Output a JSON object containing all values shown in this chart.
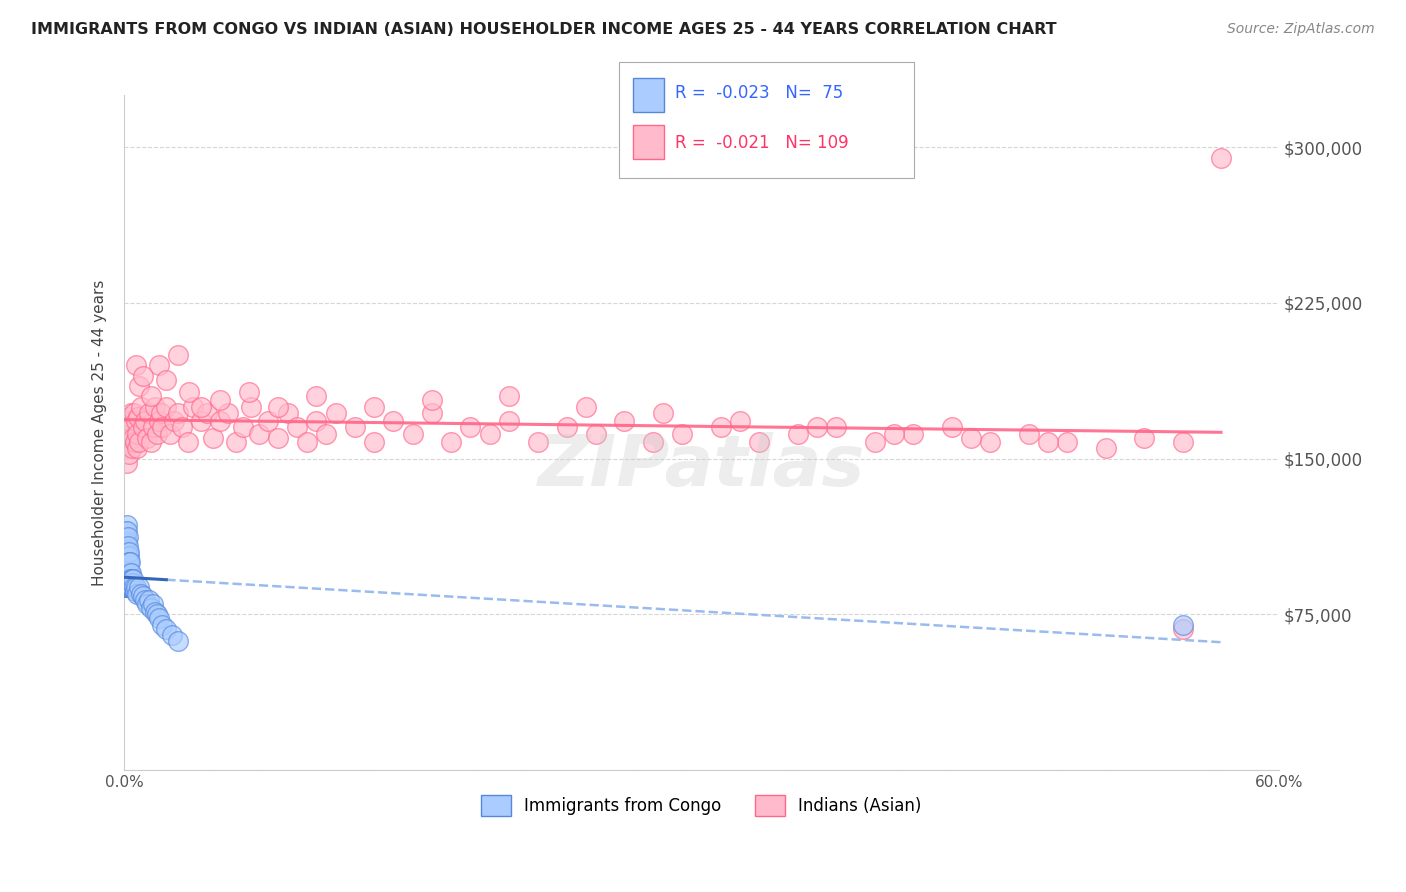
{
  "title": "IMMIGRANTS FROM CONGO VS INDIAN (ASIAN) HOUSEHOLDER INCOME AGES 25 - 44 YEARS CORRELATION CHART",
  "source": "Source: ZipAtlas.com",
  "ylabel": "Householder Income Ages 25 - 44 years",
  "legend_label_blue": "Immigrants from Congo",
  "legend_label_pink": "Indians (Asian)",
  "R_blue": -0.023,
  "N_blue": 75,
  "R_pink": -0.021,
  "N_pink": 109,
  "xlim": [
    0.0,
    0.6
  ],
  "ylim": [
    0,
    325000
  ],
  "xtick_labels": [
    "0.0%",
    "",
    "",
    "",
    "",
    "",
    "60.0%"
  ],
  "xtick_vals": [
    0.0,
    0.1,
    0.2,
    0.3,
    0.4,
    0.5,
    0.6
  ],
  "ytick_vals": [
    0,
    75000,
    150000,
    225000,
    300000
  ],
  "ytick_labels": [
    "",
    "$75,000",
    "$150,000",
    "$225,000",
    "$300,000"
  ],
  "grid_color": "#cccccc",
  "bg_color": "#ffffff",
  "blue_edge_color": "#5588dd",
  "blue_fill_color": "#aaccff",
  "pink_edge_color": "#ff6688",
  "pink_fill_color": "#ffbbcc",
  "blue_reg_solid_color": "#3366bb",
  "blue_reg_dash_color": "#99bbee",
  "pink_reg_color": "#ff6688",
  "watermark": "ZIPatlas",
  "congo_x": [
    0.0008,
    0.0009,
    0.001,
    0.001,
    0.001,
    0.0012,
    0.0012,
    0.0013,
    0.0013,
    0.0014,
    0.0014,
    0.0015,
    0.0015,
    0.0015,
    0.0016,
    0.0016,
    0.0016,
    0.0017,
    0.0017,
    0.0018,
    0.0018,
    0.0019,
    0.0019,
    0.002,
    0.002,
    0.002,
    0.0021,
    0.0021,
    0.0022,
    0.0022,
    0.0023,
    0.0023,
    0.0024,
    0.0024,
    0.0025,
    0.0025,
    0.0026,
    0.0026,
    0.0027,
    0.0028,
    0.0028,
    0.0029,
    0.003,
    0.003,
    0.0031,
    0.0032,
    0.0033,
    0.0034,
    0.0035,
    0.0036,
    0.004,
    0.004,
    0.0042,
    0.0044,
    0.0046,
    0.005,
    0.0055,
    0.006,
    0.007,
    0.008,
    0.009,
    0.01,
    0.011,
    0.012,
    0.013,
    0.014,
    0.015,
    0.016,
    0.017,
    0.018,
    0.02,
    0.022,
    0.025,
    0.028,
    0.55
  ],
  "congo_y": [
    95000,
    105000,
    88000,
    100000,
    115000,
    92000,
    108000,
    98000,
    112000,
    103000,
    95000,
    88000,
    105000,
    118000,
    92000,
    100000,
    110000,
    96000,
    88000,
    102000,
    115000,
    92000,
    98000,
    105000,
    88000,
    112000,
    95000,
    100000,
    92000,
    108000,
    98000,
    88000,
    103000,
    95000,
    100000,
    92000,
    88000,
    105000,
    96000,
    100000,
    88000,
    92000,
    95000,
    88000,
    100000,
    92000,
    88000,
    95000,
    92000,
    88000,
    88000,
    92000,
    88000,
    90000,
    92000,
    88000,
    86000,
    88000,
    85000,
    88000,
    85000,
    84000,
    82000,
    80000,
    82000,
    78000,
    80000,
    76000,
    75000,
    73000,
    70000,
    68000,
    65000,
    62000,
    70000
  ],
  "indian_x": [
    0.001,
    0.0012,
    0.0015,
    0.0018,
    0.002,
    0.0022,
    0.0025,
    0.003,
    0.0032,
    0.0035,
    0.004,
    0.0042,
    0.0045,
    0.005,
    0.0055,
    0.006,
    0.0065,
    0.007,
    0.0075,
    0.008,
    0.009,
    0.01,
    0.011,
    0.012,
    0.013,
    0.014,
    0.015,
    0.016,
    0.017,
    0.018,
    0.019,
    0.02,
    0.022,
    0.024,
    0.026,
    0.028,
    0.03,
    0.033,
    0.036,
    0.04,
    0.043,
    0.046,
    0.05,
    0.054,
    0.058,
    0.062,
    0.066,
    0.07,
    0.075,
    0.08,
    0.085,
    0.09,
    0.095,
    0.1,
    0.105,
    0.11,
    0.12,
    0.13,
    0.14,
    0.15,
    0.16,
    0.17,
    0.18,
    0.19,
    0.2,
    0.215,
    0.23,
    0.245,
    0.26,
    0.275,
    0.29,
    0.31,
    0.33,
    0.35,
    0.37,
    0.39,
    0.41,
    0.43,
    0.45,
    0.47,
    0.49,
    0.51,
    0.53,
    0.55,
    0.006,
    0.008,
    0.01,
    0.014,
    0.018,
    0.022,
    0.028,
    0.034,
    0.04,
    0.05,
    0.065,
    0.08,
    0.1,
    0.13,
    0.16,
    0.2,
    0.24,
    0.28,
    0.32,
    0.36,
    0.4,
    0.44,
    0.48,
    0.55,
    0.57
  ],
  "indian_y": [
    155000,
    162000,
    148000,
    165000,
    158000,
    170000,
    152000,
    168000,
    160000,
    172000,
    165000,
    155000,
    160000,
    172000,
    158000,
    168000,
    155000,
    162000,
    170000,
    158000,
    175000,
    165000,
    168000,
    160000,
    172000,
    158000,
    165000,
    175000,
    162000,
    168000,
    172000,
    165000,
    175000,
    162000,
    168000,
    172000,
    165000,
    158000,
    175000,
    168000,
    172000,
    160000,
    168000,
    172000,
    158000,
    165000,
    175000,
    162000,
    168000,
    160000,
    172000,
    165000,
    158000,
    168000,
    162000,
    172000,
    165000,
    158000,
    168000,
    162000,
    172000,
    158000,
    165000,
    162000,
    168000,
    158000,
    165000,
    162000,
    168000,
    158000,
    162000,
    165000,
    158000,
    162000,
    165000,
    158000,
    162000,
    165000,
    158000,
    162000,
    158000,
    155000,
    160000,
    158000,
    195000,
    185000,
    190000,
    180000,
    195000,
    188000,
    200000,
    182000,
    175000,
    178000,
    182000,
    175000,
    180000,
    175000,
    178000,
    180000,
    175000,
    172000,
    168000,
    165000,
    162000,
    160000,
    158000,
    68000,
    295000
  ]
}
